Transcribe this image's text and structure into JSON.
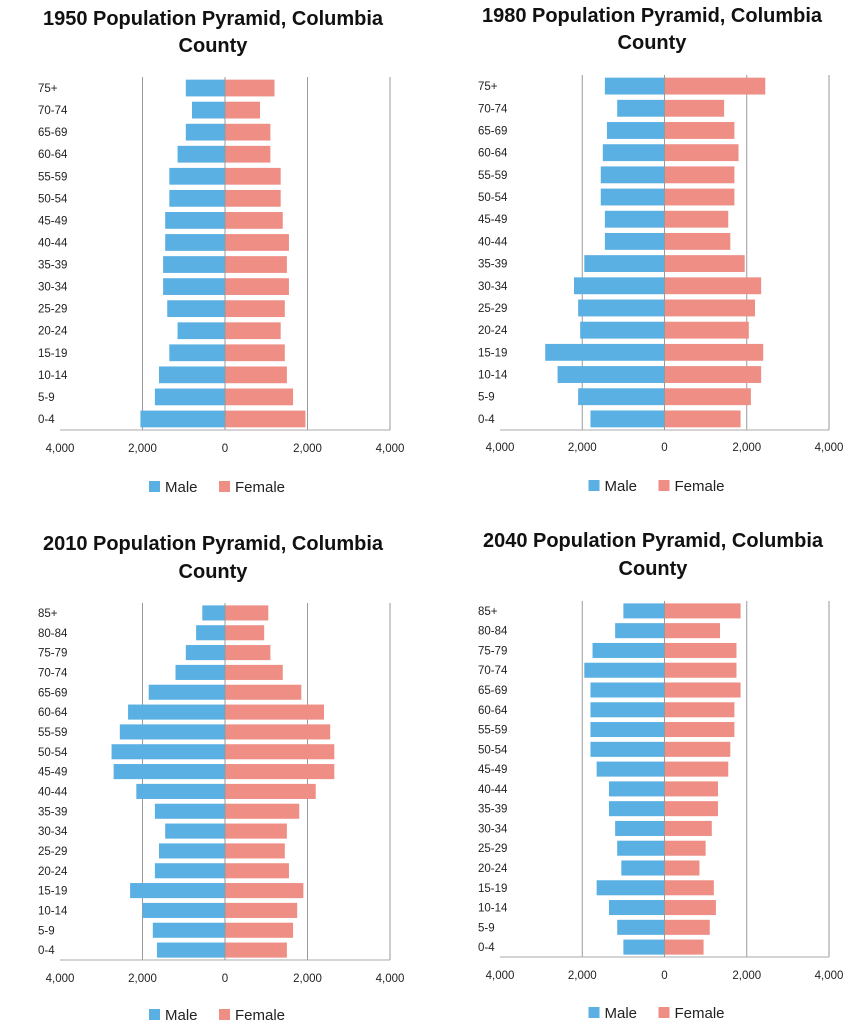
{
  "colors": {
    "male": "#5aafe3",
    "female": "#ee8e85",
    "grid": "#9a9a9a",
    "axis": "#aaaaaa"
  },
  "chart_data": [
    {
      "type": "bar",
      "title": "1950 Population Pyramid, Columbia County",
      "title_lines": [
        "1950 Population Pyramid, Columbia",
        "County"
      ],
      "categories": [
        "0-4",
        "5-9",
        "10-14",
        "15-19",
        "20-24",
        "25-29",
        "30-34",
        "35-39",
        "40-44",
        "45-49",
        "50-54",
        "55-59",
        "60-64",
        "65-69",
        "70-74",
        "75+"
      ],
      "x_ticks": [
        "4,000",
        "2,000",
        "0",
        "2,000",
        "4,000"
      ],
      "xlim": [
        -4000,
        4000
      ],
      "legend_position": "bottom",
      "grid": true,
      "series": [
        {
          "name": "Male",
          "values": [
            2050,
            1700,
            1600,
            1350,
            1150,
            1400,
            1500,
            1500,
            1450,
            1450,
            1350,
            1350,
            1150,
            950,
            800,
            950
          ]
        },
        {
          "name": "Female",
          "values": [
            1950,
            1650,
            1500,
            1450,
            1350,
            1450,
            1550,
            1500,
            1550,
            1400,
            1350,
            1350,
            1100,
            1100,
            850,
            1200
          ]
        }
      ]
    },
    {
      "type": "bar",
      "title": "1980 Population Pyramid, Columbia County",
      "title_lines": [
        "1980 Population Pyramid, Columbia",
        "County"
      ],
      "categories": [
        "0-4",
        "5-9",
        "10-14",
        "15-19",
        "20-24",
        "25-29",
        "30-34",
        "35-39",
        "40-44",
        "45-49",
        "50-54",
        "55-59",
        "60-64",
        "65-69",
        "70-74",
        "75+"
      ],
      "x_ticks": [
        "4,000",
        "2,000",
        "0",
        "2,000",
        "4,000"
      ],
      "xlim": [
        -4000,
        4000
      ],
      "legend_position": "bottom",
      "grid": true,
      "series": [
        {
          "name": "Male",
          "values": [
            1800,
            2100,
            2600,
            2900,
            2050,
            2100,
            2200,
            1950,
            1450,
            1450,
            1550,
            1550,
            1500,
            1400,
            1150,
            1450
          ]
        },
        {
          "name": "Female",
          "values": [
            1850,
            2100,
            2350,
            2400,
            2050,
            2200,
            2350,
            1950,
            1600,
            1550,
            1700,
            1700,
            1800,
            1700,
            1450,
            2450
          ]
        }
      ]
    },
    {
      "type": "bar",
      "title": "2010 Population Pyramid, Columbia County",
      "title_lines": [
        "2010 Population Pyramid, Columbia",
        "County"
      ],
      "categories": [
        "0-4",
        "5-9",
        "10-14",
        "15-19",
        "20-24",
        "25-29",
        "30-34",
        "35-39",
        "40-44",
        "45-49",
        "50-54",
        "55-59",
        "60-64",
        "65-69",
        "70-74",
        "75-79",
        "80-84",
        "85+"
      ],
      "x_ticks": [
        "4,000",
        "2,000",
        "0",
        "2,000",
        "4,000"
      ],
      "xlim": [
        -4000,
        4000
      ],
      "legend_position": "bottom",
      "grid": true,
      "series": [
        {
          "name": "Male",
          "values": [
            1650,
            1750,
            2000,
            2300,
            1700,
            1600,
            1450,
            1700,
            2150,
            2700,
            2750,
            2550,
            2350,
            1850,
            1200,
            950,
            700,
            550
          ]
        },
        {
          "name": "Female",
          "values": [
            1500,
            1650,
            1750,
            1900,
            1550,
            1450,
            1500,
            1800,
            2200,
            2650,
            2650,
            2550,
            2400,
            1850,
            1400,
            1100,
            950,
            1050
          ]
        }
      ]
    },
    {
      "type": "bar",
      "title": "2040 Population Pyramid, Columbia County",
      "title_lines": [
        "2040 Population Pyramid, Columbia",
        "County"
      ],
      "categories": [
        "0-4",
        "5-9",
        "10-14",
        "15-19",
        "20-24",
        "25-29",
        "30-34",
        "35-39",
        "40-44",
        "45-49",
        "50-54",
        "55-59",
        "60-64",
        "65-69",
        "70-74",
        "75-79",
        "80-84",
        "85+"
      ],
      "x_ticks": [
        "4,000",
        "2,000",
        "0",
        "2,000",
        "4,000"
      ],
      "xlim": [
        -4000,
        4000
      ],
      "legend_position": "bottom",
      "grid": true,
      "series": [
        {
          "name": "Male",
          "values": [
            1000,
            1150,
            1350,
            1650,
            1050,
            1150,
            1200,
            1350,
            1350,
            1650,
            1800,
            1800,
            1800,
            1800,
            1950,
            1750,
            1200,
            1000
          ]
        },
        {
          "name": "Female",
          "values": [
            950,
            1100,
            1250,
            1200,
            850,
            1000,
            1150,
            1300,
            1300,
            1550,
            1600,
            1700,
            1700,
            1850,
            1750,
            1750,
            1350,
            1850
          ]
        }
      ]
    }
  ]
}
